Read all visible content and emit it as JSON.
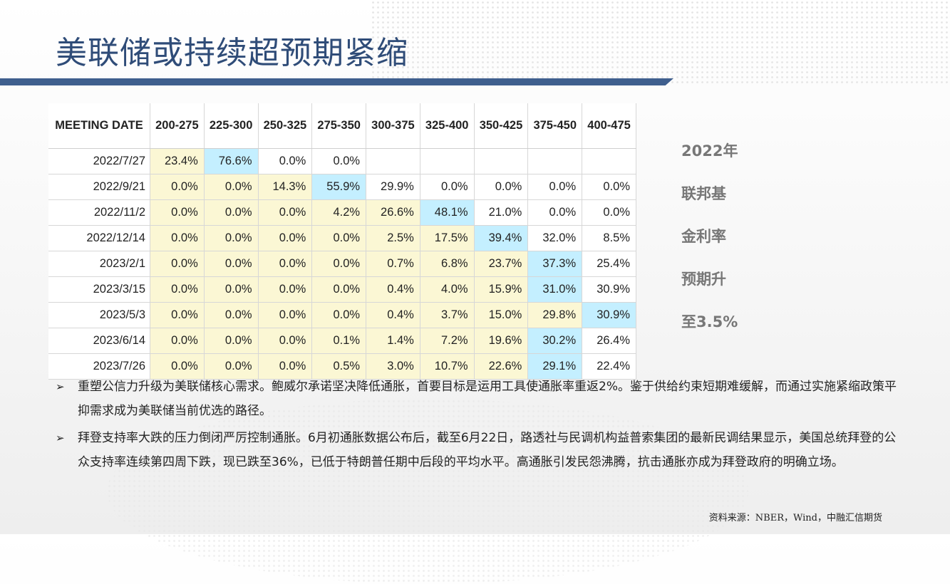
{
  "slide": {
    "title": "美联储或持续超预期紧缩"
  },
  "table": {
    "header": [
      "MEETING DATE",
      "200-275",
      "225-300",
      "250-325",
      "275-350",
      "300-375",
      "325-400",
      "350-425",
      "375-450",
      "400-475"
    ],
    "rows": [
      {
        "date": "2022/7/27",
        "cells": [
          {
            "v": "23.4%",
            "c": "y"
          },
          {
            "v": "76.6%",
            "c": "b"
          },
          {
            "v": "0.0%",
            "c": "w"
          },
          {
            "v": "0.0%",
            "c": "w"
          },
          {
            "v": "",
            "c": "w"
          },
          {
            "v": "",
            "c": "w"
          },
          {
            "v": "",
            "c": "w"
          },
          {
            "v": "",
            "c": "w"
          },
          {
            "v": "",
            "c": "w"
          }
        ]
      },
      {
        "date": "2022/9/21",
        "cells": [
          {
            "v": "0.0%",
            "c": "y"
          },
          {
            "v": "0.0%",
            "c": "y"
          },
          {
            "v": "14.3%",
            "c": "y"
          },
          {
            "v": "55.9%",
            "c": "b"
          },
          {
            "v": "29.9%",
            "c": "w"
          },
          {
            "v": "0.0%",
            "c": "w"
          },
          {
            "v": "0.0%",
            "c": "w"
          },
          {
            "v": "0.0%",
            "c": "w"
          },
          {
            "v": "0.0%",
            "c": "w"
          }
        ]
      },
      {
        "date": "2022/11/2",
        "cells": [
          {
            "v": "0.0%",
            "c": "y"
          },
          {
            "v": "0.0%",
            "c": "y"
          },
          {
            "v": "0.0%",
            "c": "y"
          },
          {
            "v": "4.2%",
            "c": "y"
          },
          {
            "v": "26.6%",
            "c": "y"
          },
          {
            "v": "48.1%",
            "c": "b"
          },
          {
            "v": "21.0%",
            "c": "w"
          },
          {
            "v": "0.0%",
            "c": "w"
          },
          {
            "v": "0.0%",
            "c": "w"
          }
        ]
      },
      {
        "date": "2022/12/14",
        "cells": [
          {
            "v": "0.0%",
            "c": "y"
          },
          {
            "v": "0.0%",
            "c": "y"
          },
          {
            "v": "0.0%",
            "c": "y"
          },
          {
            "v": "0.0%",
            "c": "y"
          },
          {
            "v": "2.5%",
            "c": "y"
          },
          {
            "v": "17.5%",
            "c": "y"
          },
          {
            "v": "39.4%",
            "c": "b"
          },
          {
            "v": "32.0%",
            "c": "w"
          },
          {
            "v": "8.5%",
            "c": "w"
          }
        ]
      },
      {
        "date": "2023/2/1",
        "cells": [
          {
            "v": "0.0%",
            "c": "y"
          },
          {
            "v": "0.0%",
            "c": "y"
          },
          {
            "v": "0.0%",
            "c": "y"
          },
          {
            "v": "0.0%",
            "c": "y"
          },
          {
            "v": "0.7%",
            "c": "y"
          },
          {
            "v": "6.8%",
            "c": "y"
          },
          {
            "v": "23.7%",
            "c": "y"
          },
          {
            "v": "37.3%",
            "c": "b"
          },
          {
            "v": "25.4%",
            "c": "w"
          }
        ]
      },
      {
        "date": "2023/3/15",
        "cells": [
          {
            "v": "0.0%",
            "c": "y"
          },
          {
            "v": "0.0%",
            "c": "y"
          },
          {
            "v": "0.0%",
            "c": "y"
          },
          {
            "v": "0.0%",
            "c": "y"
          },
          {
            "v": "0.4%",
            "c": "y"
          },
          {
            "v": "4.0%",
            "c": "y"
          },
          {
            "v": "15.9%",
            "c": "y"
          },
          {
            "v": "31.0%",
            "c": "b"
          },
          {
            "v": "30.9%",
            "c": "w"
          }
        ]
      },
      {
        "date": "2023/5/3",
        "cells": [
          {
            "v": "0.0%",
            "c": "y"
          },
          {
            "v": "0.0%",
            "c": "y"
          },
          {
            "v": "0.0%",
            "c": "y"
          },
          {
            "v": "0.0%",
            "c": "y"
          },
          {
            "v": "0.4%",
            "c": "y"
          },
          {
            "v": "3.7%",
            "c": "y"
          },
          {
            "v": "15.0%",
            "c": "y"
          },
          {
            "v": "29.8%",
            "c": "y"
          },
          {
            "v": "30.9%",
            "c": "b"
          }
        ]
      },
      {
        "date": "2023/6/14",
        "cells": [
          {
            "v": "0.0%",
            "c": "y"
          },
          {
            "v": "0.0%",
            "c": "y"
          },
          {
            "v": "0.0%",
            "c": "y"
          },
          {
            "v": "0.1%",
            "c": "y"
          },
          {
            "v": "1.4%",
            "c": "y"
          },
          {
            "v": "7.2%",
            "c": "y"
          },
          {
            "v": "19.6%",
            "c": "y"
          },
          {
            "v": "30.2%",
            "c": "b"
          },
          {
            "v": "26.4%",
            "c": "w"
          }
        ]
      },
      {
        "date": "2023/7/26",
        "cells": [
          {
            "v": "0.0%",
            "c": "y"
          },
          {
            "v": "0.0%",
            "c": "y"
          },
          {
            "v": "0.0%",
            "c": "y"
          },
          {
            "v": "0.5%",
            "c": "y"
          },
          {
            "v": "3.0%",
            "c": "y"
          },
          {
            "v": "10.7%",
            "c": "y"
          },
          {
            "v": "22.6%",
            "c": "y"
          },
          {
            "v": "29.1%",
            "c": "b"
          },
          {
            "v": "22.4%",
            "c": "w"
          }
        ]
      }
    ]
  },
  "side_note": {
    "lines": [
      "2022年",
      "联邦基",
      "金利率",
      "预期升",
      "至3.5%"
    ]
  },
  "bullets": [
    {
      "marker": "➢",
      "text": "重塑公信力升级为美联储核心需求。鲍威尔承诺坚决降低通胀，首要目标是运用工具使通胀率重返2%。鉴于供给约束短期难缓解，而通过实施紧缩政策平抑需求成为美联储当前优选的路径。"
    },
    {
      "marker": "➢",
      "text": "拜登支持率大跌的压力倒闭严厉控制通胀。6月初通胀数据公布后，截至6月22日，路透社与民调机构益普索集团的最新民调结果显示，美国总统拜登的公众支持率连续第四周下跌，现已跌至36%，已低于特朗普任期中后段的平均水平。高通胀引发民怨沸腾，抗击通胀亦成为拜登政府的明确立场。"
    }
  ],
  "source": "资料来源：NBER，Wind，中融汇信期货",
  "colors": {
    "title": "#2f4c78",
    "title_bar": "#3f5f8e",
    "cell_yellow": "#fbf7d4",
    "cell_blue": "#c4efff",
    "side_note": "#777777"
  }
}
